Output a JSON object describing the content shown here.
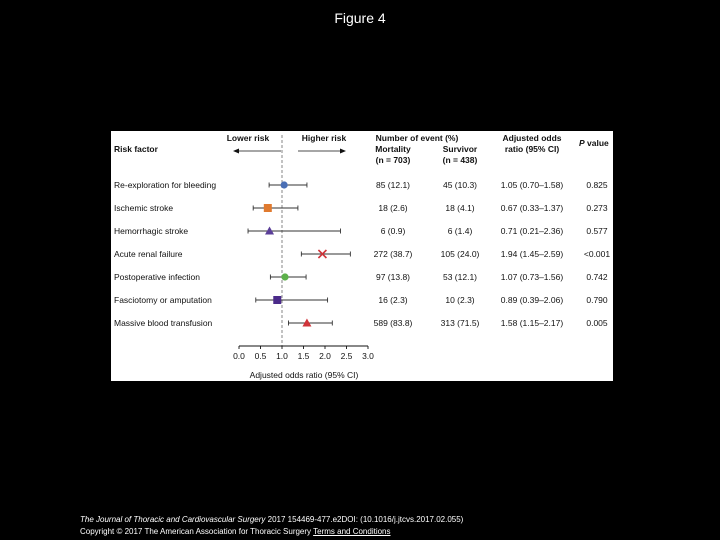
{
  "slide": {
    "title": "Figure 4"
  },
  "footer": {
    "journal": "The Journal of Thoracic and Cardiovascular Surgery",
    "citation": " 2017 154469-477.e2DOI: (10.1016/j.jtcvs.2017.02.055)",
    "copyright": "Copyright © 2017 The American Association for Thoracic Surgery ",
    "terms_link": "Terms and Conditions"
  },
  "chart_data": {
    "type": "forest",
    "header": {
      "risk_factor": "Risk factor",
      "lower_risk": "Lower risk",
      "higher_risk": "Higher risk",
      "events": "Number of event (%)",
      "mortality": "Mortality",
      "mortality_n": "(n = 703)",
      "survivor": "Survivor",
      "survivor_n": "(n = 438)",
      "or_line1": "Adjusted odds",
      "or_line2": "ratio (95% CI)",
      "p": "P",
      "p_rest": "value"
    },
    "xlabel": "Adjusted odds ratio (95% CI)",
    "xlim": [
      0,
      3
    ],
    "xticks": [
      "0.0",
      "0.5",
      "1.0",
      "1.5",
      "2.0",
      "2.5",
      "3.0"
    ],
    "reference_line": 1.0,
    "rows": [
      {
        "label": "Re-exploration for bleeding",
        "or": 1.05,
        "lo": 0.7,
        "hi": 1.58,
        "mortality": "85 (12.1)",
        "survivor": "45 (10.3)",
        "or_text": "1.05 (0.70–1.58)",
        "p": "0.825",
        "marker": "circle",
        "color": "#4a6fb5"
      },
      {
        "label": "Ischemic stroke",
        "or": 0.67,
        "lo": 0.33,
        "hi": 1.37,
        "mortality": "18 (2.6)",
        "survivor": "18 (4.1)",
        "or_text": "0.67 (0.33–1.37)",
        "p": "0.273",
        "marker": "square",
        "color": "#e07a2f"
      },
      {
        "label": "Hemorrhagic stroke",
        "or": 0.71,
        "lo": 0.21,
        "hi": 2.36,
        "mortality": "6 (0.9)",
        "survivor": "6 (1.4)",
        "or_text": "0.71 (0.21–2.36)",
        "p": "0.577",
        "marker": "triangle",
        "color": "#5a3e98"
      },
      {
        "label": "Acute renal failure",
        "or": 1.94,
        "lo": 1.45,
        "hi": 2.59,
        "mortality": "272 (38.7)",
        "survivor": "105 (24.0)",
        "or_text": "1.94 (1.45–2.59)",
        "p": "<0.001",
        "marker": "cross",
        "color": "#d0343a"
      },
      {
        "label": "Postoperative infection",
        "or": 1.07,
        "lo": 0.73,
        "hi": 1.56,
        "mortality": "97 (13.8)",
        "survivor": "53 (12.1)",
        "or_text": "1.07 (0.73–1.56)",
        "p": "0.742",
        "marker": "circle",
        "color": "#5cb04a"
      },
      {
        "label": "Fasciotomy or amputation",
        "or": 0.89,
        "lo": 0.39,
        "hi": 2.06,
        "mortality": "16 (2.3)",
        "survivor": "10 (2.3)",
        "or_text": "0.89 (0.39–2.06)",
        "p": "0.790",
        "marker": "square",
        "color": "#4b2a8a"
      },
      {
        "label": "Massive blood transfusion",
        "or": 1.58,
        "lo": 1.15,
        "hi": 2.17,
        "mortality": "589 (83.8)",
        "survivor": "313 (71.5)",
        "or_text": "1.58 (1.15–2.17)",
        "p": "0.005",
        "marker": "triangle",
        "color": "#d0343a"
      }
    ]
  }
}
